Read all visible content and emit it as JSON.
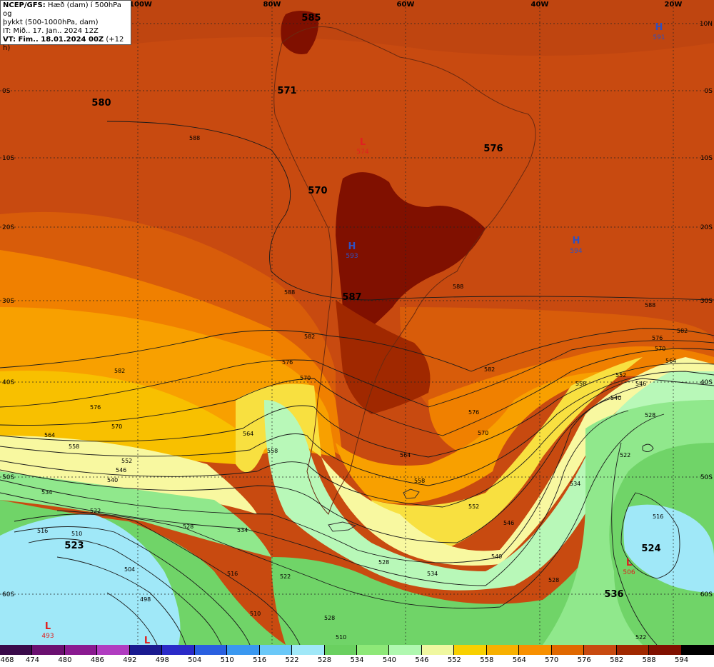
{
  "header": {
    "line1_bold": "NCEP/GFS:",
    "line1_rest": " Hæð (dam) í 500hPa og",
    "line2": "þykkt (500-1000hPa, dam)",
    "line3": "IT: Mið.. 17. Jan.. 2024 12Z",
    "line4_bold": "VT: Fim.. 18.01.2024 00Z",
    "line4_rest": " (+12 h)"
  },
  "lon_labels": [
    "100W",
    "80W",
    "60W",
    "40W",
    "20W"
  ],
  "lat_labels_left": [
    "0S",
    "10S",
    "20S",
    "30S",
    "40S",
    "50S",
    "60S"
  ],
  "lat_labels_right": [
    "10N",
    "0S",
    "10S",
    "20S",
    "30S",
    "40S",
    "50S",
    "60S"
  ],
  "height_labels": [
    "585",
    "580",
    "571",
    "576",
    "570",
    "587",
    "523",
    "524",
    "536"
  ],
  "pressure_centers": [
    {
      "type": "H",
      "value": "591"
    },
    {
      "type": "L",
      "value": "574"
    },
    {
      "type": "H",
      "value": "593"
    },
    {
      "type": "H",
      "value": "594"
    },
    {
      "type": "L",
      "value": "506"
    },
    {
      "type": "L",
      "value": "493"
    },
    {
      "type": "L",
      "value": ""
    }
  ],
  "contour_labels": [
    "588",
    "582",
    "576",
    "570",
    "564",
    "558",
    "552",
    "546",
    "540",
    "534",
    "528",
    "522",
    "516",
    "510",
    "504",
    "498"
  ],
  "colorbar": {
    "ticks": [
      "468",
      "474",
      "480",
      "486",
      "492",
      "498",
      "504",
      "510",
      "516",
      "522",
      "528",
      "534",
      "540",
      "546",
      "552",
      "558",
      "564",
      "570",
      "576",
      "582",
      "588",
      "594"
    ],
    "colors": [
      "#3a0a4a",
      "#6b1070",
      "#8a1a90",
      "#b03cc0",
      "#1a1a90",
      "#2a2ac8",
      "#2a60e0",
      "#3a98f0",
      "#6ac8f8",
      "#a0e8f8",
      "#6ad060",
      "#8ee878",
      "#b0f8b0",
      "#f0f8a0",
      "#f8d000",
      "#f8b000",
      "#f89000",
      "#e06800",
      "#c84a10",
      "#a02800",
      "#801000",
      "#000000"
    ]
  },
  "shading_colors": {
    "h594": "#801000",
    "h588": "#a02800",
    "h582": "#bf4510",
    "h576": "#d85c0a",
    "h570": "#f08000",
    "h564": "#f8a000",
    "h558": "#f8c000",
    "h552": "#f8e040",
    "h546": "#f8f8a0",
    "h540": "#b8f8b8",
    "h534": "#90e88c",
    "h528": "#70d468",
    "h522": "#a0e8f8"
  }
}
